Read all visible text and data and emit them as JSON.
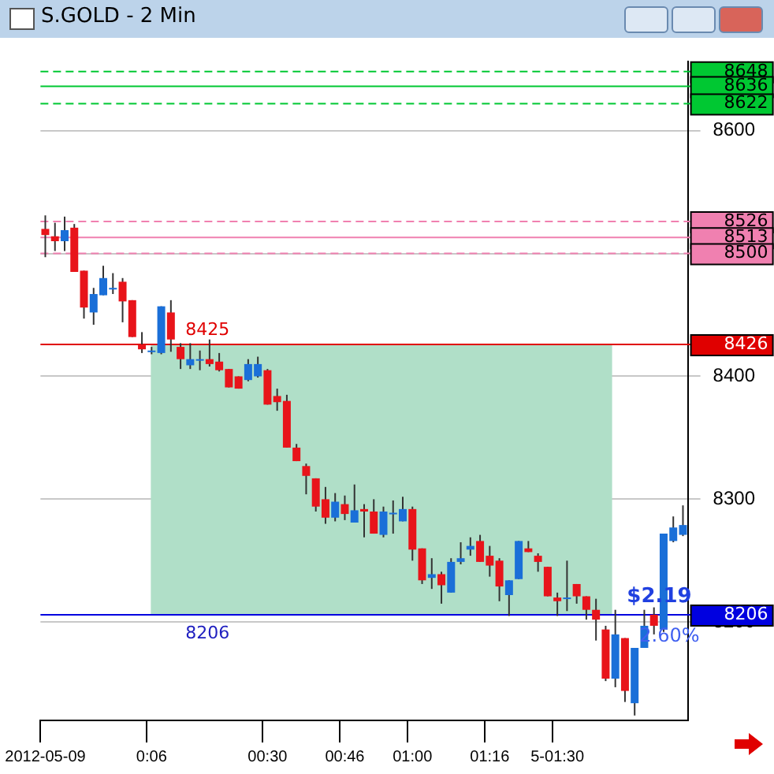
{
  "chart_data": {
    "type": "candlestick",
    "title": "S.GOLD - 2 Min",
    "categories": [
      "2012-05-09",
      null,
      null,
      null,
      null,
      null,
      null,
      null,
      null,
      null,
      null,
      "0:06",
      null,
      null,
      null,
      null,
      null,
      null,
      null,
      null,
      null,
      null,
      null,
      "00:30",
      null,
      null,
      null,
      null,
      null,
      null,
      null,
      "00:46",
      null,
      null,
      null,
      null,
      null,
      null,
      "01:00",
      null,
      null,
      null,
      null,
      null,
      null,
      null,
      "01:16",
      null,
      null,
      null,
      null,
      null,
      null,
      "5-01:30",
      null,
      null,
      null,
      null,
      null,
      null,
      null,
      null,
      null,
      null,
      null,
      null,
      null
    ],
    "ohlc": [
      [
        8520,
        8531,
        8497,
        8515
      ],
      [
        8514,
        8525,
        8502,
        8510
      ],
      [
        8510,
        8530,
        8502,
        8519
      ],
      [
        8521,
        8524,
        8485,
        8485
      ],
      [
        8486,
        8486,
        8447,
        8456
      ],
      [
        8452,
        8472,
        8442,
        8467
      ],
      [
        8466,
        8490,
        8466,
        8480
      ],
      [
        8471,
        8484,
        8467,
        8472
      ],
      [
        8477,
        8480,
        8444,
        8461
      ],
      [
        8462,
        8462,
        8432,
        8432
      ],
      [
        8426,
        8436,
        8419,
        8422
      ],
      [
        8420,
        8424,
        8418,
        8421
      ],
      [
        8419,
        8457,
        8418,
        8457
      ],
      [
        8452,
        8462,
        8420,
        8430
      ],
      [
        8424,
        8427,
        8406,
        8414
      ],
      [
        8409,
        8427,
        8406,
        8414
      ],
      [
        8414,
        8421,
        8405,
        8414
      ],
      [
        8414,
        8430,
        8408,
        8410
      ],
      [
        8412,
        8419,
        8404,
        8405
      ],
      [
        8406,
        8406,
        8391,
        8391
      ],
      [
        8400,
        8400,
        8390,
        8390
      ],
      [
        8397,
        8414,
        8396,
        8410
      ],
      [
        8400,
        8416,
        8399,
        8410
      ],
      [
        8405,
        8406,
        8377,
        8377
      ],
      [
        8384,
        8390,
        8372,
        8379
      ],
      [
        8380,
        8385,
        8342,
        8342
      ],
      [
        8342,
        8345,
        8331,
        8331
      ],
      [
        8327,
        8329,
        8304,
        8319
      ],
      [
        8317,
        8317,
        8290,
        8294
      ],
      [
        8300,
        8310,
        8280,
        8285
      ],
      [
        8285,
        8305,
        8282,
        8298
      ],
      [
        8296,
        8303,
        8283,
        8288
      ],
      [
        8281,
        8312,
        8281,
        8291
      ],
      [
        8292,
        8296,
        8269,
        8290
      ],
      [
        8290,
        8300,
        8272,
        8272
      ],
      [
        8271,
        8294,
        8269,
        8290
      ],
      [
        8289,
        8299,
        8272,
        8289
      ],
      [
        8282,
        8302,
        8282,
        8292
      ],
      [
        8292,
        8294,
        8250,
        8259
      ],
      [
        8260,
        8260,
        8231,
        8234
      ],
      [
        8236,
        8252,
        8227,
        8239
      ],
      [
        8239,
        8241,
        8215,
        8230
      ],
      [
        8224,
        8252,
        8224,
        8249
      ],
      [
        8249,
        8265,
        8247,
        8252
      ],
      [
        8259,
        8269,
        8254,
        8262
      ],
      [
        8266,
        8271,
        8249,
        8249
      ],
      [
        8254,
        8262,
        8237,
        8246
      ],
      [
        8250,
        8252,
        8217,
        8229
      ],
      [
        8222,
        8234,
        8205,
        8234
      ],
      [
        8235,
        8266,
        8235,
        8266
      ],
      [
        8260,
        8266,
        8257,
        8257
      ],
      [
        8254,
        8256,
        8241,
        8249
      ],
      [
        8245,
        8245,
        8221,
        8221
      ],
      [
        8220,
        8224,
        8205,
        8217
      ],
      [
        8220,
        8250,
        8209,
        8220
      ],
      [
        8231,
        8231,
        8215,
        8221
      ],
      [
        8221,
        8221,
        8202,
        8210
      ],
      [
        8210,
        8219,
        8185,
        8202
      ],
      [
        8194,
        8197,
        8152,
        8154
      ],
      [
        8154,
        8210,
        8147,
        8190
      ],
      [
        8187,
        8187,
        8135,
        8144
      ],
      [
        8134,
        8179,
        8124,
        8179
      ],
      [
        8179,
        8210,
        8179,
        8197
      ],
      [
        8206,
        8212,
        8190,
        8197
      ],
      [
        8194,
        8272,
        8192,
        8272
      ],
      [
        8266,
        8286,
        8265,
        8277
      ],
      [
        8271,
        8295,
        8270,
        8279
      ]
    ],
    "colors": [
      "#e8141a",
      "#e8141a",
      "#1a6fd8",
      "#e8141a",
      "#e8141a",
      "#1a6fd8",
      "#1a6fd8",
      "#1a6fd8",
      "#e8141a",
      "#e8141a",
      "#e8141a",
      "#1a6fd8",
      "#1a6fd8",
      "#e8141a",
      "#e8141a",
      "#1a6fd8",
      "#1a6fd8",
      "#e8141a",
      "#e8141a",
      "#e8141a",
      "#e8141a",
      "#1a6fd8",
      "#1a6fd8",
      "#e8141a",
      "#e8141a",
      "#e8141a",
      "#e8141a",
      "#e8141a",
      "#e8141a",
      "#e8141a",
      "#1a6fd8",
      "#e8141a",
      "#1a6fd8",
      "#e8141a",
      "#e8141a",
      "#1a6fd8",
      "#1a6fd8",
      "#1a6fd8",
      "#e8141a",
      "#e8141a",
      "#1a6fd8",
      "#e8141a",
      "#1a6fd8",
      "#1a6fd8",
      "#1a6fd8",
      "#e8141a",
      "#e8141a",
      "#e8141a",
      "#1a6fd8",
      "#1a6fd8",
      "#e8141a",
      "#e8141a",
      "#e8141a",
      "#e8141a",
      "#1a6fd8",
      "#e8141a",
      "#e8141a",
      "#e8141a",
      "#e8141a",
      "#1a6fd8",
      "#e8141a",
      "#1a6fd8",
      "#1a6fd8",
      "#e8141a",
      "#1a6fd8",
      "#1a6fd8",
      "#1a6fd8"
    ],
    "ylim": [
      8120,
      8656
    ],
    "yticks": [
      8200,
      8300,
      8400,
      {
        "value": 8500,
        "label": null
      },
      8600
    ],
    "grid": true,
    "legend": false,
    "ref_lines": [
      {
        "axis": "y",
        "value": 8648,
        "label": "8648",
        "color": "#00c832",
        "line_style": "dashed"
      },
      {
        "axis": "y",
        "value": 8636,
        "label": "8636",
        "color": "#00c832",
        "line_style": "solid"
      },
      {
        "axis": "y",
        "value": 8622,
        "label": "8622",
        "color": "#00c832",
        "line_style": "dashed"
      },
      {
        "axis": "y",
        "value": 8526,
        "label": "8526",
        "color": "#f080b0",
        "line_style": "dashed"
      },
      {
        "axis": "y",
        "value": 8513,
        "label": "8513",
        "color": "#f080b0",
        "line_style": "solid"
      },
      {
        "axis": "y",
        "value": 8500,
        "label": "8500",
        "color": "#f080b0",
        "line_style": "dashed"
      },
      {
        "axis": "y",
        "value": 8426,
        "label": "8426",
        "color": "#e00000",
        "line_style": "solid"
      },
      {
        "axis": "y",
        "value": 8206,
        "label": "8206",
        "color": "#0000e0",
        "line_style": "solid"
      }
    ],
    "bands": [
      {
        "axis": "y",
        "from": 8206,
        "to": 8426,
        "color": "#b0dfc8"
      }
    ],
    "annotations": [
      {
        "text": "8425",
        "y": 8426
      },
      {
        "text": "8206",
        "y": 8206
      },
      "$2.19",
      "2.60%"
    ]
  }
}
